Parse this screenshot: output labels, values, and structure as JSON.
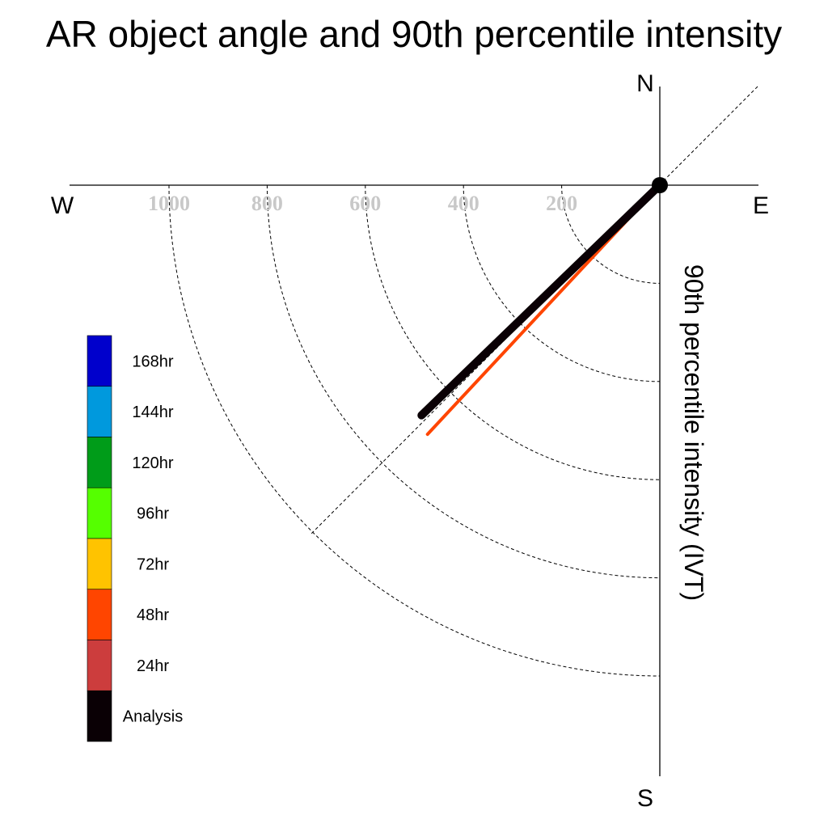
{
  "chart_data": {
    "type": "polar-vector",
    "title": "AR object angle and 90th percentile intensity",
    "radial_label": "90th percentile intensity (IVT)",
    "compass": {
      "n": "N",
      "e": "E",
      "s": "S",
      "w": "W"
    },
    "radial_ticks": [
      200,
      400,
      600,
      800,
      1000
    ],
    "radial_max": 1000,
    "grid": "dashed arcs (southwest quadrant)",
    "legend_placement": "left",
    "series": [
      {
        "name": "168hr",
        "color": "#0000cc",
        "angle_deg": null,
        "intensity": null
      },
      {
        "name": "144hr",
        "color": "#0099dd",
        "angle_deg": null,
        "intensity": null
      },
      {
        "name": "120hr",
        "color": "#009c19",
        "angle_deg": null,
        "intensity": null
      },
      {
        "name": "96hr",
        "color": "#55ff00",
        "angle_deg": null,
        "intensity": null
      },
      {
        "name": "72hr",
        "color": "#ffc300",
        "angle_deg": 226,
        "intensity": 645
      },
      {
        "name": "48hr",
        "color": "#ff4500",
        "angle_deg": 223,
        "intensity": 694
      },
      {
        "name": "24hr",
        "color": "#cc3d3d",
        "angle_deg": 226,
        "intensity": 650
      },
      {
        "name": "Analysis",
        "color": "#0a0005",
        "angle_deg": 226,
        "intensity": 675
      }
    ]
  }
}
